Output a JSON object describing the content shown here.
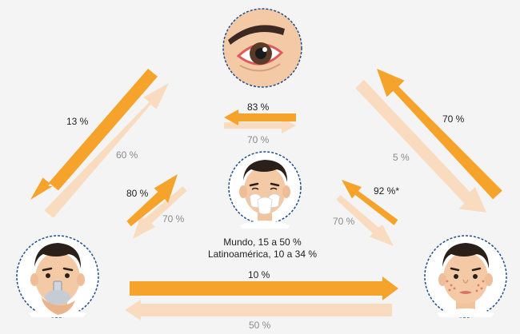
{
  "colors": {
    "strong": "#f5a32a",
    "weak": "#f9dcc0",
    "ring": "#1f4e8c"
  },
  "arrows": [
    {
      "id": "left-down",
      "label": "13 %"
    },
    {
      "id": "left-up",
      "label": "60 %"
    },
    {
      "id": "top-left",
      "label": "83 %"
    },
    {
      "id": "top-right",
      "label": "70 %"
    },
    {
      "id": "center-left-up",
      "label": "80 %"
    },
    {
      "id": "center-left-down",
      "label": "70 %"
    },
    {
      "id": "right-up",
      "label": "70 %"
    },
    {
      "id": "right-down",
      "label": "5 %"
    },
    {
      "id": "center-right-up",
      "label": "92 %*"
    },
    {
      "id": "center-right-down",
      "label": "70 %"
    },
    {
      "id": "bottom-right",
      "label": "10 %"
    },
    {
      "id": "bottom-left",
      "label": "50 %"
    }
  ],
  "center": {
    "line1": "Mundo, 15 a 50 %",
    "line2": "Latinoamérica, 10 a 34 %"
  },
  "icons": {
    "eye": "eye-icon",
    "sneeze": "sneezing-face-icon",
    "inhaler": "inhaler-face-icon",
    "skin": "skin-rash-face-icon"
  }
}
